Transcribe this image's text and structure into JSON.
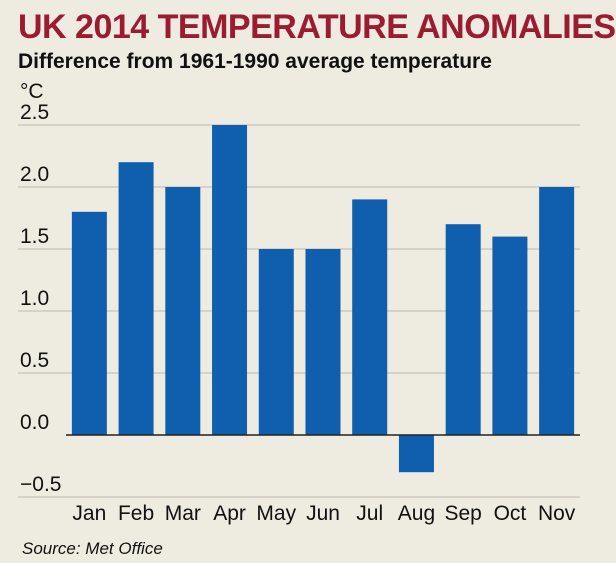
{
  "colors": {
    "background": "#eeebe1",
    "title": "#9b1b30",
    "bar": "#0f5fae",
    "grid": "#bdbab1",
    "baseline": "#222222"
  },
  "chart_data": {
    "type": "bar",
    "title": "UK 2014 TEMPERATURE ANOMALIES",
    "subtitle": "Difference from 1961-1990 average temperature",
    "ylabel": "°C",
    "xlabel": "",
    "categories": [
      "Jan",
      "Feb",
      "Mar",
      "Apr",
      "May",
      "Jun",
      "Jul",
      "Aug",
      "Sep",
      "Oct",
      "Nov"
    ],
    "values": [
      1.8,
      2.2,
      2.0,
      2.5,
      1.5,
      1.5,
      1.9,
      -0.3,
      1.7,
      1.6,
      2.0
    ],
    "yticks": [
      "2.5",
      "2.0",
      "1.5",
      "1.0",
      "0.5",
      "0.0",
      "−0.5"
    ],
    "ytick_values": [
      2.5,
      2.0,
      1.5,
      1.0,
      0.5,
      0.0,
      -0.5
    ],
    "ylim": [
      -0.5,
      2.5
    ],
    "grid": true,
    "legend": "none",
    "source": "Source: Met Office"
  }
}
